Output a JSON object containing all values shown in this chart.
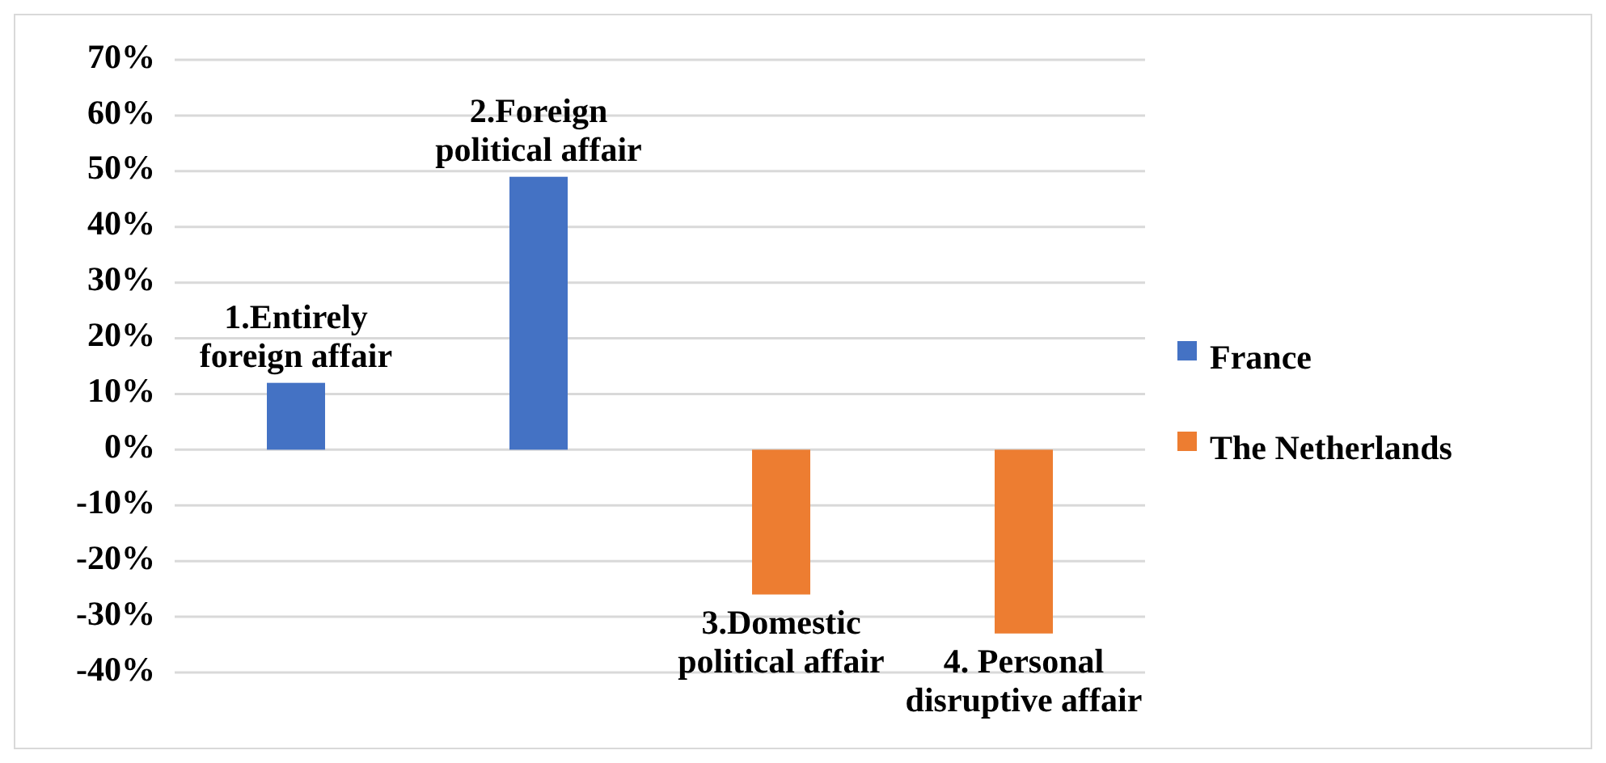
{
  "chart_data": {
    "type": "bar",
    "categories": [
      "1.Entirely foreign affair",
      "2.Foreign political affair",
      "3.Domestic political affair",
      "4. Personal disruptive affair"
    ],
    "series": [
      {
        "name": "France",
        "color": "#4472c4",
        "values": [
          12,
          49,
          null,
          null
        ]
      },
      {
        "name": "The Netherlands",
        "color": "#ed7d31",
        "values": [
          null,
          null,
          -26,
          -33
        ]
      }
    ],
    "ylim": [
      -40,
      70
    ],
    "yticks": [
      {
        "value": -40,
        "label": "-40%"
      },
      {
        "value": -30,
        "label": "-30%"
      },
      {
        "value": -20,
        "label": "-20%"
      },
      {
        "value": -10,
        "label": "-10%"
      },
      {
        "value": 0,
        "label": "0%"
      },
      {
        "value": 10,
        "label": "10%"
      },
      {
        "value": 20,
        "label": "20%"
      },
      {
        "value": 30,
        "label": "30%"
      },
      {
        "value": 40,
        "label": "40%"
      },
      {
        "value": 50,
        "label": "50%"
      },
      {
        "value": 60,
        "label": "60%"
      },
      {
        "value": 70,
        "label": "70%"
      }
    ],
    "grid": true,
    "legend": "right"
  }
}
